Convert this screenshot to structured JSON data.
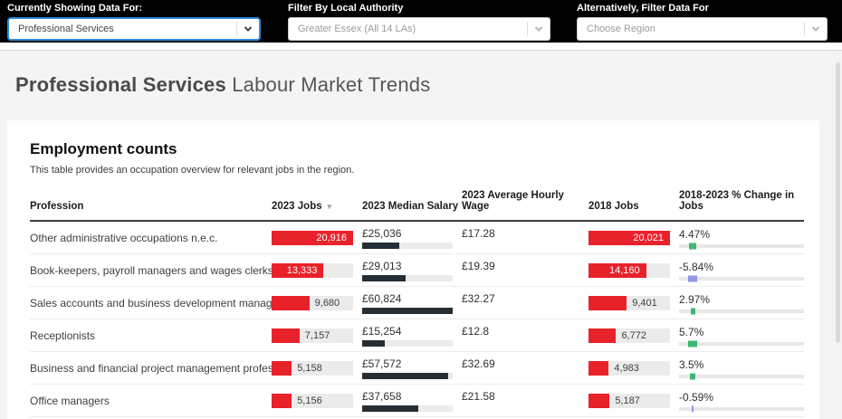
{
  "filters": {
    "showing": {
      "label": "Currently Showing Data For:",
      "value": "Professional Services"
    },
    "authority": {
      "label": "Filter By Local Authority",
      "value": "Greater Essex (All 14 LAs)"
    },
    "region": {
      "label": "Alternatively, Filter Data For",
      "placeholder": "Choose Region"
    }
  },
  "page": {
    "title_bold": "Professional Services",
    "title_rest": " Labour Market Trends"
  },
  "section": {
    "heading": "Employment counts",
    "description": "This table provides an occupation overview for relevant jobs in the region."
  },
  "icons": {
    "sort_desc": "▾",
    "chevron_down": "chevron-down"
  },
  "colors": {
    "bar_red": "#e8222b",
    "bar_dark": "#252e35",
    "track_gray": "#ebebeb",
    "positive_green": "#3eb874",
    "negative_indigo": "#9198e5",
    "accent_blue": "#2d8cdb"
  },
  "table": {
    "columns": [
      "Profession",
      "2023 Jobs",
      "2023 Median Salary",
      "2023 Average Hourly Wage",
      "2018 Jobs",
      "2018-2023 % Change in Jobs"
    ],
    "sorted_column_index": 1,
    "scales": {
      "jobs_2023_max": 20916,
      "jobs_2018_max": 20021,
      "salary_max": 60824
    },
    "rows": [
      {
        "profession": "Other administrative occupations n.e.c.",
        "jobs_2023": 20916,
        "jobs_2023_label": "20,916",
        "median_salary_2023": 25036,
        "median_salary_label": "£25,036",
        "avg_hourly_wage_label": "£17.28",
        "jobs_2018": 20021,
        "jobs_2018_label": "20,021",
        "change_pct": 4.47,
        "change_label": "4.47%"
      },
      {
        "profession": "Book-keepers, payroll managers and wages clerks",
        "jobs_2023": 13333,
        "jobs_2023_label": "13,333",
        "median_salary_2023": 29013,
        "median_salary_label": "£29,013",
        "avg_hourly_wage_label": "£19.39",
        "jobs_2018": 14160,
        "jobs_2018_label": "14,160",
        "change_pct": -5.84,
        "change_label": "-5.84%"
      },
      {
        "profession": "Sales accounts and business development managers",
        "jobs_2023": 9680,
        "jobs_2023_label": "9,680",
        "median_salary_2023": 60824,
        "median_salary_label": "£60,824",
        "avg_hourly_wage_label": "£32.27",
        "jobs_2018": 9401,
        "jobs_2018_label": "9,401",
        "change_pct": 2.97,
        "change_label": "2.97%"
      },
      {
        "profession": "Receptionists",
        "jobs_2023": 7157,
        "jobs_2023_label": "7,157",
        "median_salary_2023": 15254,
        "median_salary_label": "£15,254",
        "avg_hourly_wage_label": "£12.8",
        "jobs_2018": 6772,
        "jobs_2018_label": "6,772",
        "change_pct": 5.7,
        "change_label": "5.7%"
      },
      {
        "profession": "Business and financial project management professionals",
        "jobs_2023": 5158,
        "jobs_2023_label": "5,158",
        "median_salary_2023": 57572,
        "median_salary_label": "£57,572",
        "avg_hourly_wage_label": "£32.69",
        "jobs_2018": 4983,
        "jobs_2018_label": "4,983",
        "change_pct": 3.5,
        "change_label": "3.5%"
      },
      {
        "profession": "Office managers",
        "jobs_2023": 5156,
        "jobs_2023_label": "5,156",
        "median_salary_2023": 37658,
        "median_salary_label": "£37,658",
        "avg_hourly_wage_label": "£21.58",
        "jobs_2018": 5187,
        "jobs_2018_label": "5,187",
        "change_pct": -0.59,
        "change_label": "-0.59%"
      }
    ]
  }
}
